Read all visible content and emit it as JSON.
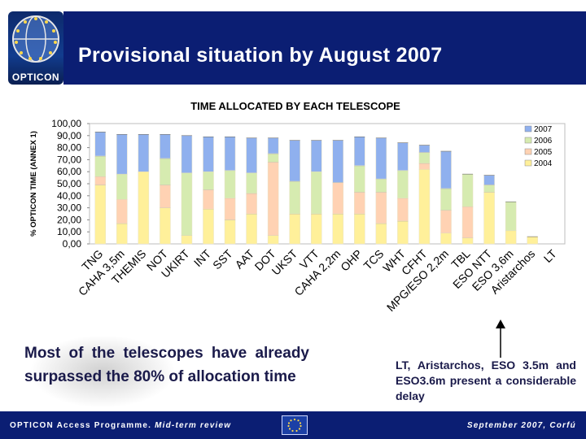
{
  "header": {
    "title": "Provisional situation by August 2007",
    "logo_text": "OPTICON"
  },
  "chart_data": {
    "type": "bar",
    "stacked": true,
    "title": "TIME ALLOCATED BY EACH TELESCOPE",
    "ylabel": "% OPTICON TIME (ANNEX 1)",
    "xlabel": "",
    "ylim": [
      0,
      100
    ],
    "yticks": [
      "0,00",
      "10,00",
      "20,00",
      "30,00",
      "40,00",
      "50,00",
      "60,00",
      "70,00",
      "80,00",
      "90,00",
      "100,00"
    ],
    "grid": false,
    "legend_position": "right",
    "categories": [
      "TNG",
      "CAHA 3,5m",
      "THEMIS",
      "NOT",
      "UKIRT",
      "INT",
      "SST",
      "AAT",
      "DOT",
      "UKST",
      "VTT",
      "CAHA 2,2m",
      "OHP",
      "TCS",
      "WHT",
      "CFHT",
      "MPG/ESO 2,2m",
      "TBL",
      "ESO NTT",
      "ESO 3,6m",
      "Aristarchos",
      "LT"
    ],
    "series": [
      {
        "name": "2004",
        "color": "#fff09a",
        "values": [
          49,
          17,
          60,
          30,
          7,
          29,
          20,
          25,
          7,
          25,
          25,
          25,
          25,
          17,
          19,
          62,
          9,
          5,
          43,
          11,
          6,
          0
        ]
      },
      {
        "name": "2005",
        "color": "#ffd2b3",
        "values": [
          7,
          20,
          0,
          19,
          0,
          16,
          18,
          17,
          61,
          0,
          0,
          26,
          18,
          26,
          19,
          5,
          19,
          26,
          0,
          0,
          0,
          0
        ]
      },
      {
        "name": "2006",
        "color": "#d6ebb0",
        "values": [
          17,
          21,
          0,
          22,
          52,
          15,
          23,
          17,
          7,
          27,
          35,
          0,
          22,
          11,
          23,
          9,
          18,
          27,
          6,
          24,
          0,
          0
        ]
      },
      {
        "name": "2007",
        "color": "#8fb0ee",
        "values": [
          20,
          33,
          31,
          20,
          31,
          29,
          28,
          29,
          13,
          34,
          26,
          35,
          24,
          34,
          23,
          6,
          31,
          0,
          8,
          0,
          0,
          0
        ]
      }
    ],
    "legend_order": [
      "2007",
      "2006",
      "2005",
      "2004"
    ]
  },
  "bottom_left_text": "Most of the telescopes have already surpassed the 80% of allocation time",
  "bottom_right_text": "LT, Aristarchos, ESO 3.5m and ESO3.6m present a considerable delay",
  "footer": {
    "left_text": "OPTICON Access Programme. ",
    "left_em": "Mid-term review",
    "right_text": "September 2007, Corfú"
  },
  "colors": {
    "brand_blue": "#0b1e73",
    "text_dark": "#1a1a4a"
  }
}
